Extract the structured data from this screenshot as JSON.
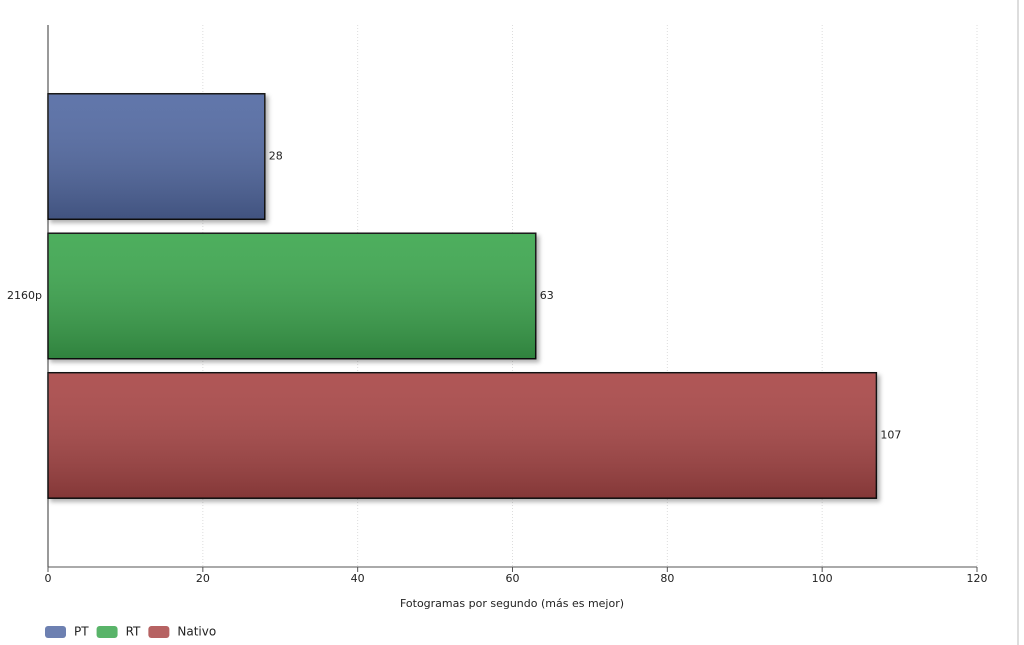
{
  "chart_data": {
    "type": "bar",
    "orientation": "horizontal",
    "categories": [
      "2160p"
    ],
    "series": [
      {
        "name": "PT",
        "color": "#536aa3",
        "values": [
          28
        ]
      },
      {
        "name": "RT",
        "color": "#3ca74f",
        "values": [
          63
        ]
      },
      {
        "name": "Nativo",
        "color": "#a94747",
        "values": [
          107
        ]
      }
    ],
    "xlabel": "Fotogramas por segundo (más es mejor)",
    "xlim": [
      0,
      120
    ],
    "xticks": [
      0,
      20,
      40,
      60,
      80,
      100,
      120
    ],
    "grid": true,
    "legend": "bottom-left"
  }
}
